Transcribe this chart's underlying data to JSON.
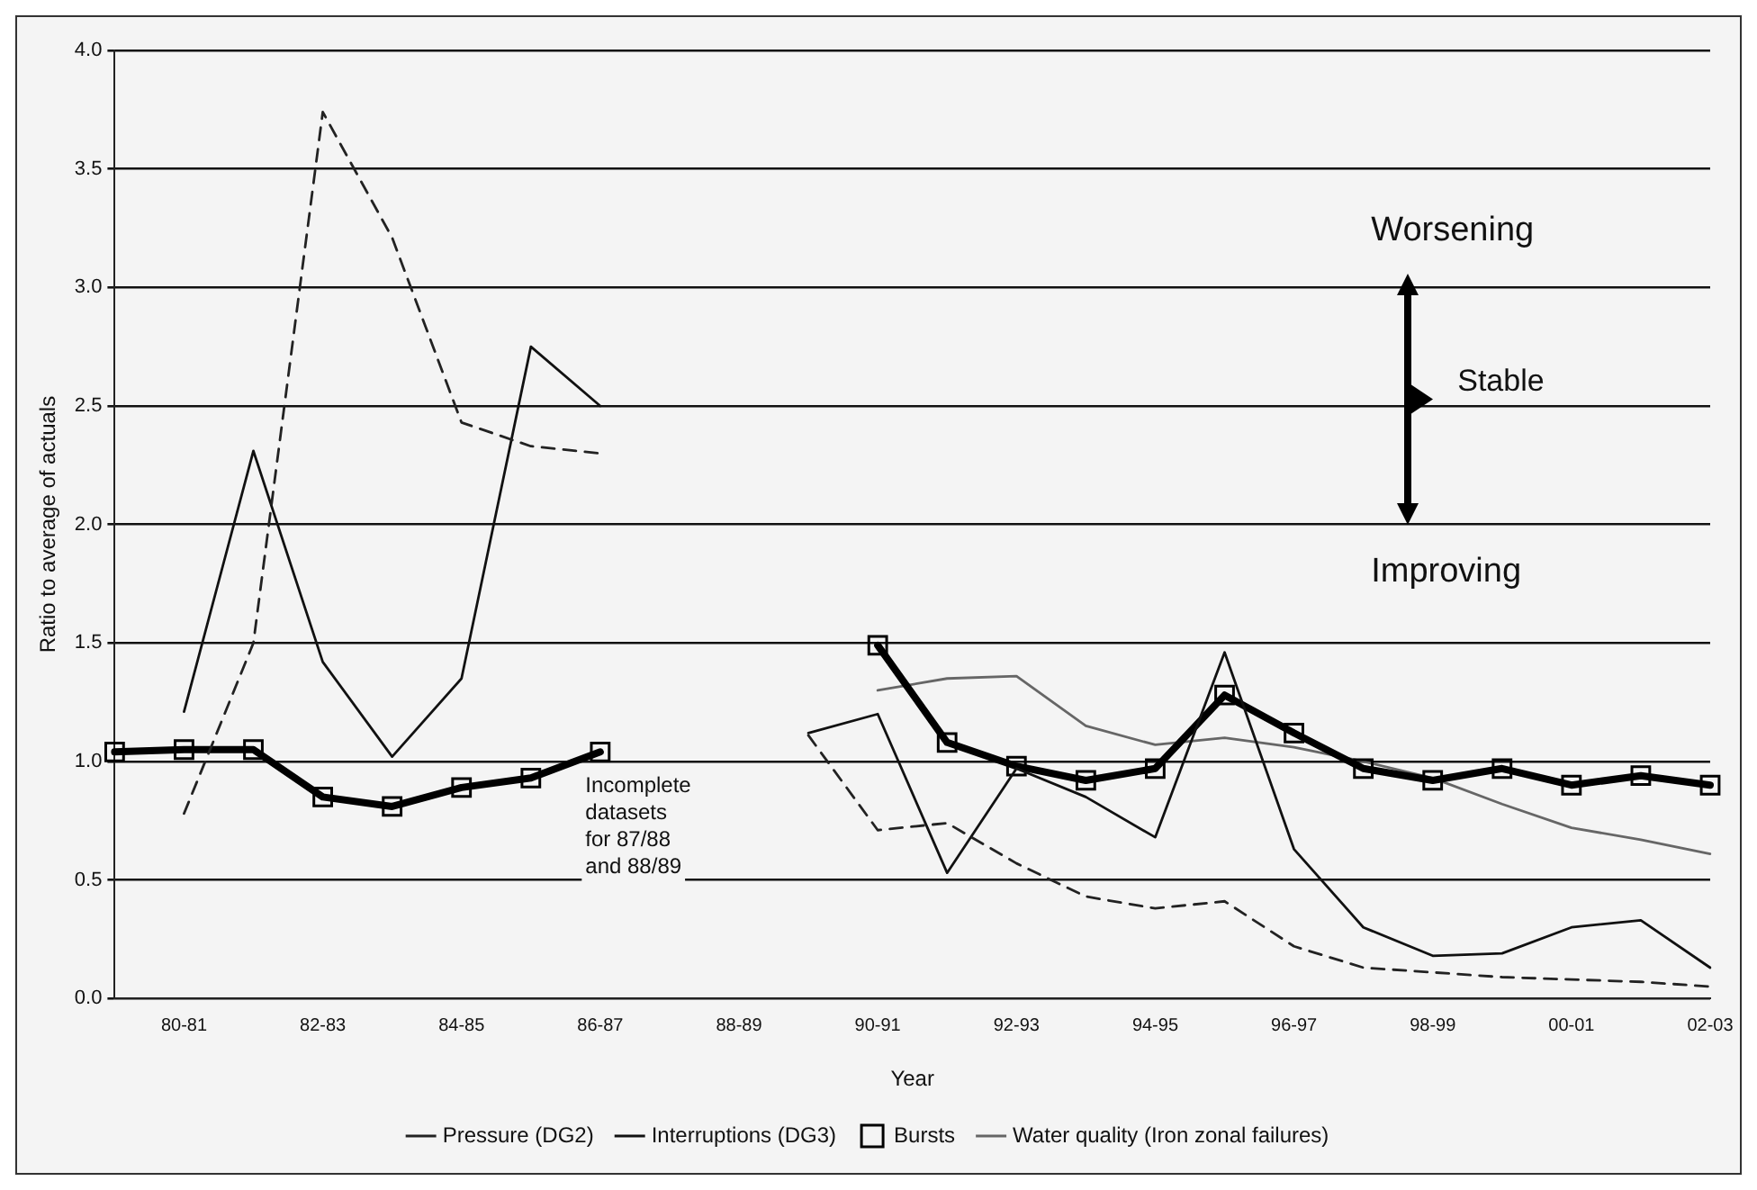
{
  "chart_data": {
    "type": "line",
    "xlabel": "Year",
    "ylabel": "Ratio to average of actuals",
    "categories": [
      null,
      "80-81",
      null,
      "82-83",
      null,
      "84-85",
      null,
      "86-87",
      null,
      "88-89",
      null,
      "90-91",
      null,
      "92-93",
      null,
      "94-95",
      null,
      "96-97",
      null,
      "98-99",
      null,
      "00-01",
      null,
      "02-03"
    ],
    "series": [
      {
        "name": "Pressure (DG2)",
        "color": "#222222",
        "line_style": "dashed",
        "marker": "none",
        "values": [
          null,
          0.78,
          1.5,
          3.74,
          3.21,
          2.43,
          2.33,
          2.3,
          null,
          null,
          1.11,
          0.71,
          0.74,
          0.57,
          0.43,
          0.38,
          0.41,
          0.22,
          0.13,
          0.11,
          0.09,
          0.08,
          0.07,
          0.05
        ]
      },
      {
        "name": "Interruptions (DG3)",
        "color": "#111111",
        "line_style": "solid",
        "marker": "none",
        "values": [
          null,
          1.21,
          2.31,
          1.42,
          1.02,
          1.35,
          2.75,
          2.5,
          null,
          null,
          1.12,
          1.2,
          0.53,
          0.97,
          0.85,
          0.68,
          1.46,
          0.63,
          0.3,
          0.18,
          0.19,
          0.3,
          0.33,
          0.13
        ]
      },
      {
        "name": "Bursts",
        "color": "#000000",
        "line_style": "solid",
        "marker": "square",
        "values": [
          1.04,
          1.05,
          1.05,
          0.85,
          0.81,
          0.89,
          0.93,
          1.04,
          null,
          null,
          null,
          1.49,
          1.08,
          0.98,
          0.92,
          0.97,
          1.28,
          1.12,
          0.97,
          0.92,
          0.97,
          0.9,
          0.94,
          0.9
        ]
      },
      {
        "name": "Water quality (Iron zonal failures)",
        "color": "#666666",
        "line_style": "solid",
        "marker": "none",
        "values": [
          null,
          null,
          null,
          null,
          null,
          null,
          null,
          null,
          null,
          null,
          null,
          1.3,
          1.35,
          1.36,
          1.15,
          1.07,
          1.1,
          1.06,
          1.0,
          0.93,
          0.82,
          0.72,
          0.67,
          0.61
        ]
      }
    ],
    "ylim": [
      0,
      4
    ],
    "yticks": [
      {
        "value": 0,
        "label": "0.0"
      },
      {
        "value": 0.5,
        "label": "0.5"
      },
      {
        "value": 1,
        "label": "1.0"
      },
      {
        "value": 1.5,
        "label": "1.5"
      },
      {
        "value": 2,
        "label": "2.0"
      },
      {
        "value": 2.5,
        "label": "2.5"
      },
      {
        "value": 3,
        "label": "3.0"
      },
      {
        "value": 3.5,
        "label": "3.5"
      },
      {
        "value": 4,
        "label": "4.0"
      }
    ],
    "grid": "y",
    "legend": "bottom",
    "annotations": [
      "Incomplete\ndatasets\nfor 87/88\nand 88/89",
      "Worsening",
      "Stable",
      "Improving"
    ]
  }
}
